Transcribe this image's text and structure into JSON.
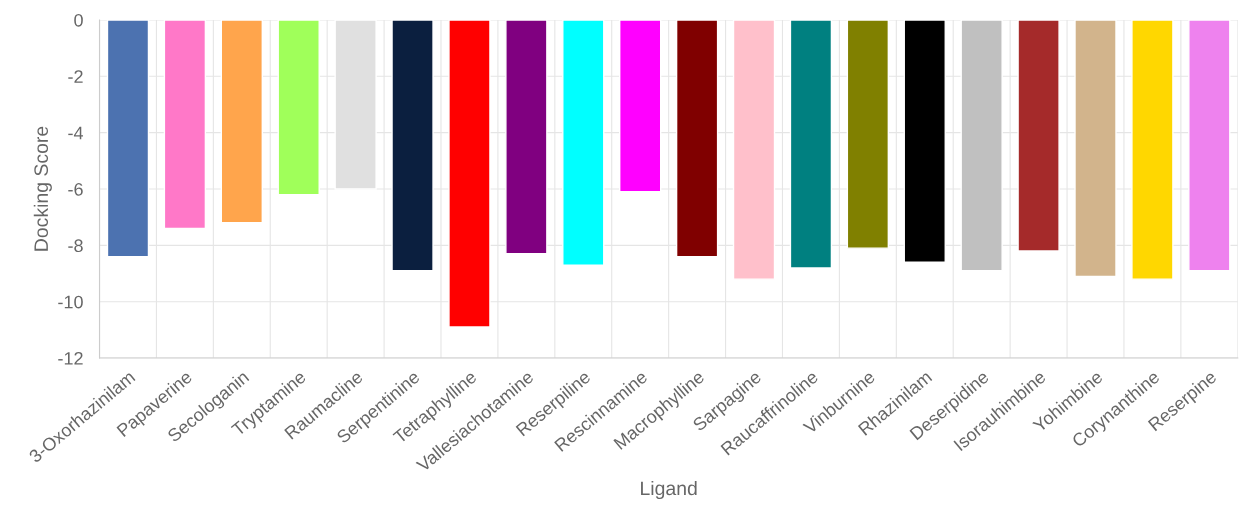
{
  "chart_data": {
    "type": "bar",
    "xlabel": "Ligand",
    "ylabel": "Docking Score",
    "categories": [
      "3-Oxorhazinilam",
      "Papaverine",
      "Secologanin",
      "Tryptamine",
      "Raumacline",
      "Serpentinine",
      "Tetraphylline",
      "Vallesiachotamine",
      "Reserpiline",
      "Rescinnamine",
      "Macrophylline",
      "Sarpagine",
      "Raucaffrinoline",
      "Vinburnine",
      "Rhazinilam",
      "Deserpidine",
      "Isorauhimbine",
      "Yohimbine",
      "Corynanthine",
      "Reserpine"
    ],
    "values": [
      -8.4,
      -7.4,
      -7.2,
      -6.2,
      -6.0,
      -8.9,
      -10.9,
      -8.3,
      -8.7,
      -6.1,
      -8.4,
      -9.2,
      -8.8,
      -8.1,
      -8.6,
      -8.9,
      -8.2,
      -9.1,
      -9.2,
      -8.9
    ],
    "colors": [
      "#4c72b0",
      "#ff78c8",
      "#ffa54c",
      "#a0ff5a",
      "#e0e0e0",
      "#0b1f3f",
      "#ff0000",
      "#800080",
      "#00ffff",
      "#ff00ff",
      "#800000",
      "#ffc0cb",
      "#008080",
      "#808000",
      "#000000",
      "#c0c0c0",
      "#a52a2a",
      "#d2b48c",
      "#ffd700",
      "#ee82ee"
    ],
    "ylim": [
      -12,
      0
    ],
    "yticks": [
      -12,
      -10,
      -8,
      -6,
      -4,
      -2,
      0
    ],
    "grid": true,
    "legend": false
  }
}
